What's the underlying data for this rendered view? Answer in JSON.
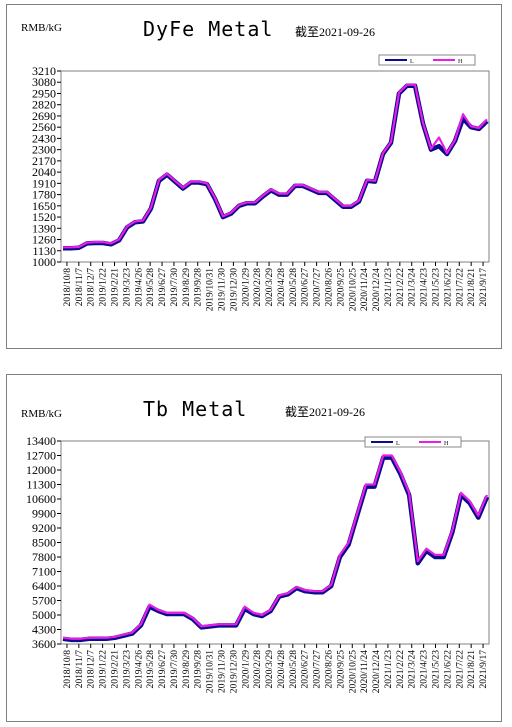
{
  "colors": {
    "series_L": "#0a0a8c",
    "series_H": "#e81ee8",
    "frame": "#808080",
    "grid": "#000000"
  },
  "chart_data": [
    {
      "type": "line",
      "title": "DyFe Metal",
      "subtitle": "截至2021-09-26",
      "ylabel": "RMB/kG",
      "ylim": [
        1000,
        3210
      ],
      "yticks": [
        "3210",
        "3080",
        "2950",
        "2820",
        "2690",
        "2560",
        "2430",
        "2300",
        "2170",
        "2040",
        "1910",
        "1780",
        "1650",
        "1520",
        "1390",
        "1260",
        "1130",
        "1000"
      ],
      "xticks": [
        "2018/10/8",
        "2018/11/7",
        "2018/12/7",
        "2019/1/22",
        "2019/2/21",
        "2019/3/23",
        "2019/4/26",
        "2019/5/28",
        "2019/6/27",
        "2019/7/30",
        "2019/8/29",
        "2019/9/28",
        "2019/10/31",
        "2019/11/30",
        "2019/12/30",
        "2020/1/29",
        "2020/2/28",
        "2020/3/29",
        "2020/4/28",
        "2020/5/28",
        "2020/6/27",
        "2020/7/27",
        "2020/8/26",
        "2020/9/25",
        "2020/10/25",
        "2020/11/24",
        "2020/12/24",
        "2021/1/23",
        "2021/2/22",
        "2021/3/24",
        "2021/4/23",
        "2021/5/23",
        "2021/6/22",
        "2021/7/22",
        "2021/8/21",
        "2021/9/17"
      ],
      "legend": {
        "entries": [
          "L",
          "H"
        ],
        "position": "top-right"
      },
      "series": [
        {
          "name": "L",
          "values": [
            1160,
            1160,
            1165,
            1215,
            1220,
            1220,
            1205,
            1250,
            1400,
            1460,
            1470,
            1620,
            1940,
            2010,
            1930,
            1850,
            1920,
            1920,
            1900,
            1730,
            1520,
            1560,
            1650,
            1680,
            1680,
            1760,
            1830,
            1780,
            1780,
            1880,
            1880,
            1840,
            1800,
            1800,
            1720,
            1640,
            1640,
            1700,
            1940,
            1930,
            2250,
            2380,
            2950,
            3040,
            3040,
            2600,
            2300,
            2340,
            2250,
            2400,
            2660,
            2560,
            2540,
            2630
          ]
        },
        {
          "name": "H",
          "values": [
            1170,
            1170,
            1175,
            1225,
            1230,
            1230,
            1215,
            1260,
            1410,
            1470,
            1480,
            1630,
            1950,
            2020,
            1940,
            1860,
            1930,
            1930,
            1910,
            1740,
            1530,
            1570,
            1660,
            1690,
            1690,
            1770,
            1840,
            1790,
            1790,
            1890,
            1890,
            1850,
            1810,
            1810,
            1730,
            1650,
            1650,
            1710,
            1950,
            1940,
            2260,
            2390,
            2960,
            3050,
            3050,
            2610,
            2310,
            2440,
            2260,
            2410,
            2710,
            2570,
            2550,
            2650
          ]
        }
      ]
    },
    {
      "type": "line",
      "title": "Tb Metal",
      "subtitle": "截至2021-09-26",
      "ylabel": "RMB/kG",
      "ylim": [
        3600,
        13400
      ],
      "yticks": [
        "13400",
        "12700",
        "12000",
        "11300",
        "10600",
        "9900",
        "9200",
        "8500",
        "7800",
        "7100",
        "6400",
        "5700",
        "5000",
        "4300",
        "3600"
      ],
      "xticks": [
        "2018/10/8",
        "2018/11/7",
        "2018/12/7",
        "2019/1/22",
        "2019/2/21",
        "2019/3/23",
        "2019/4/26",
        "2019/5/28",
        "2019/6/27",
        "2019/7/30",
        "2019/8/29",
        "2019/9/28",
        "2019/10/31",
        "2019/11/30",
        "2019/12/30",
        "2020/1/29",
        "2020/2/28",
        "2020/3/29",
        "2020/4/28",
        "2020/5/28",
        "2020/6/27",
        "2020/7/27",
        "2020/8/26",
        "2020/9/25",
        "2020/10/25",
        "2020/11/24",
        "2020/12/24",
        "2021/1/23",
        "2021/2/22",
        "2021/3/24",
        "2021/4/23",
        "2021/5/23",
        "2021/6/22",
        "2021/7/22",
        "2021/8/21",
        "2021/9/17"
      ],
      "legend": {
        "entries": [
          "L",
          "H"
        ],
        "position": "top-right"
      },
      "series": [
        {
          "name": "L",
          "values": [
            3850,
            3800,
            3800,
            3850,
            3850,
            3850,
            3900,
            4000,
            4100,
            4500,
            5400,
            5200,
            5050,
            5050,
            5050,
            4800,
            4400,
            4450,
            4500,
            4500,
            4500,
            5300,
            5050,
            4950,
            5200,
            5900,
            6000,
            6300,
            6150,
            6100,
            6100,
            6400,
            7800,
            8400,
            9800,
            11200,
            11200,
            12600,
            12600,
            11800,
            10800,
            7500,
            8100,
            7800,
            7800,
            9000,
            10800,
            10400,
            9700,
            10700
          ]
        },
        {
          "name": "H",
          "values": [
            3900,
            3850,
            3850,
            3900,
            3900,
            3900,
            3950,
            4050,
            4150,
            4550,
            5500,
            5250,
            5100,
            5100,
            5100,
            4850,
            4450,
            4500,
            4550,
            4550,
            4550,
            5400,
            5100,
            5000,
            5250,
            5950,
            6050,
            6350,
            6200,
            6150,
            6150,
            6450,
            7900,
            8500,
            9900,
            11300,
            11300,
            12700,
            12700,
            11900,
            10900,
            7600,
            8200,
            7900,
            7900,
            9100,
            10900,
            10500,
            9800,
            10800
          ]
        }
      ]
    }
  ]
}
